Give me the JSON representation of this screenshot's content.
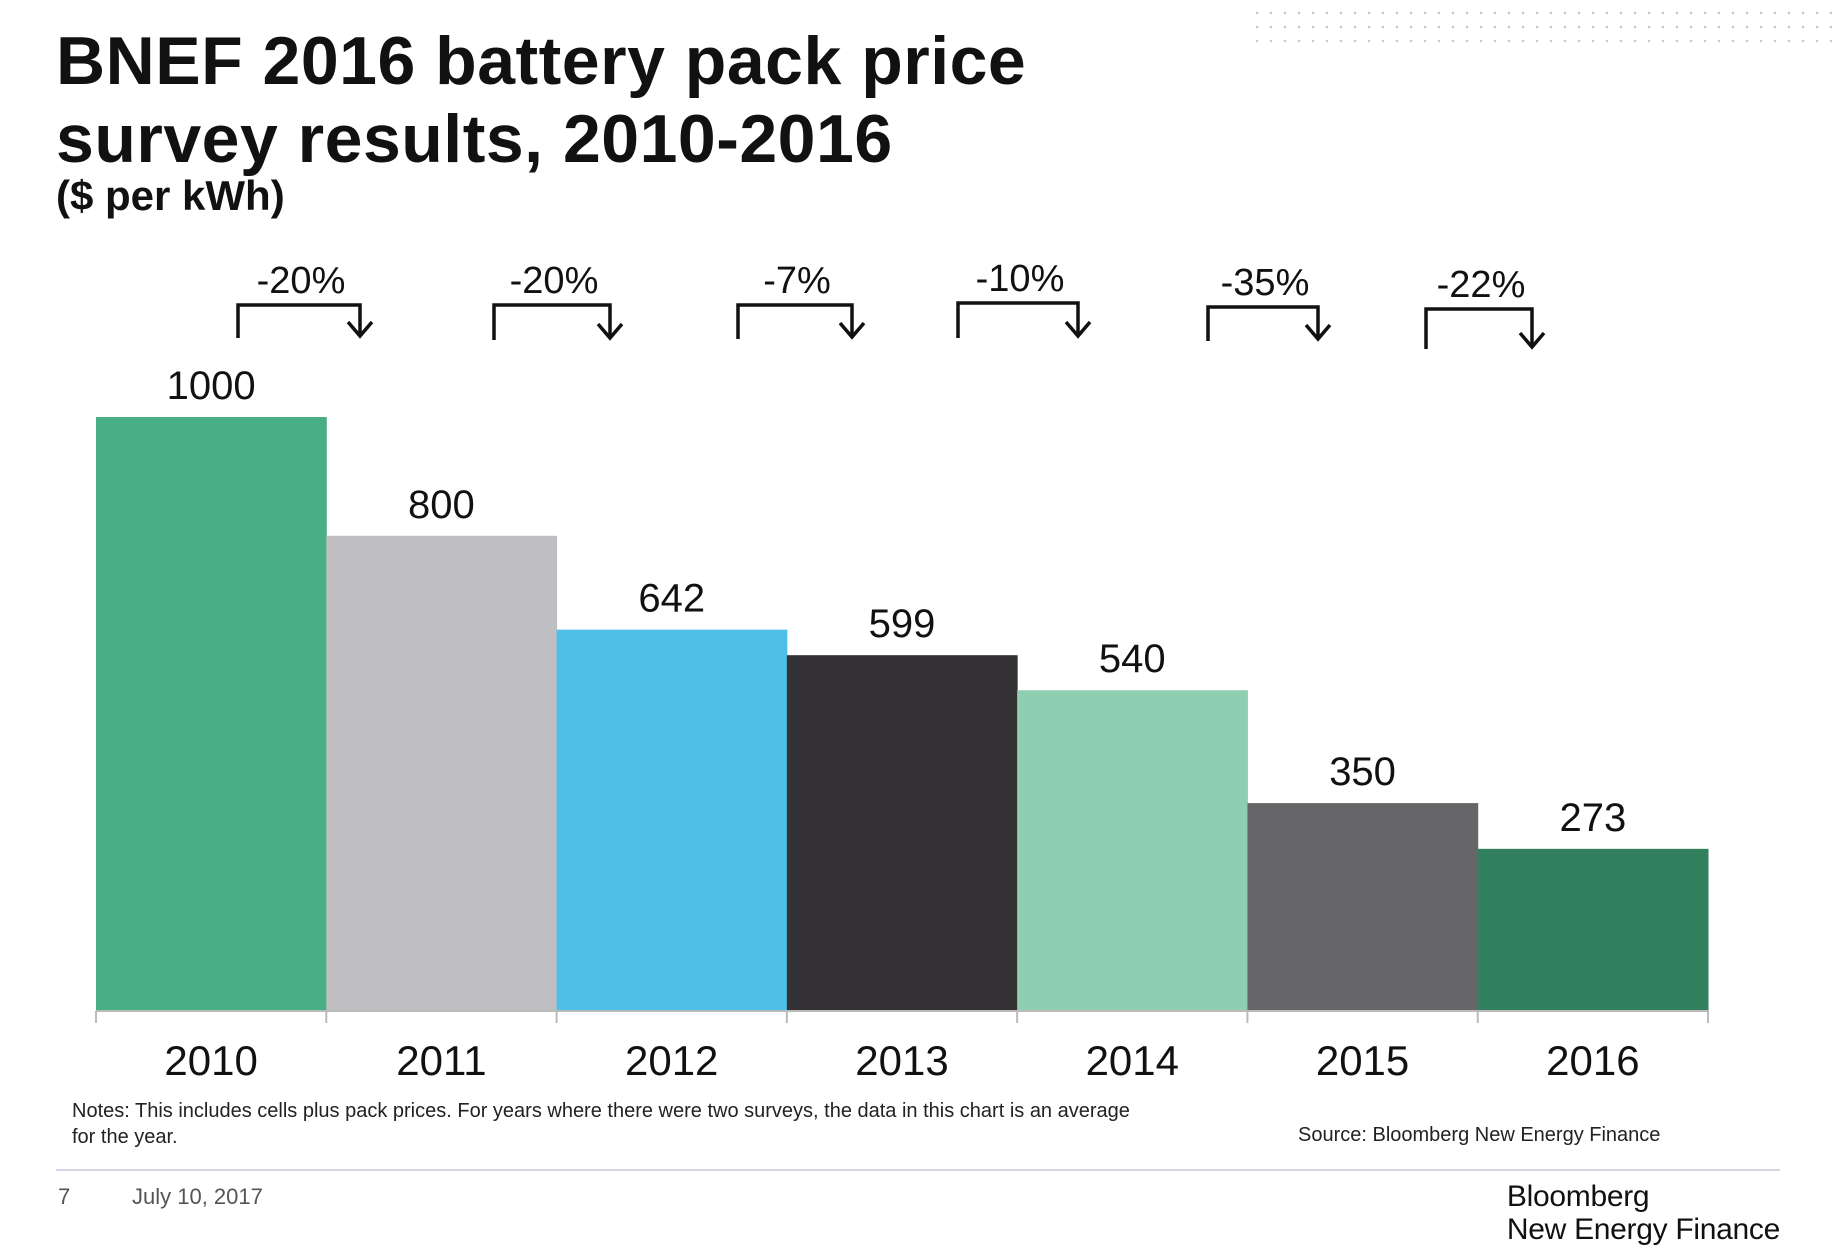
{
  "title": {
    "line1": "BNEF 2016 battery pack price",
    "line2": "survey results, 2010-2016",
    "subtitle": "($ per kWh)"
  },
  "chart_data": {
    "type": "bar",
    "title": "BNEF 2016 battery pack price survey results, 2010-2016",
    "ylabel": "$ per kWh",
    "xlabel": "",
    "ylim": [
      0,
      1000
    ],
    "grid": false,
    "legend": "none",
    "categories": [
      "2010",
      "2011",
      "2012",
      "2013",
      "2014",
      "2015",
      "2016"
    ],
    "values": [
      1000,
      800,
      642,
      599,
      540,
      350,
      273
    ],
    "colors": [
      "#4aae84",
      "#bfbfc2",
      "#4ebfe6",
      "#333133",
      "#8fceb0",
      "#666668",
      "#33805e"
    ],
    "changes": [
      {
        "label": "-20%",
        "between": [
          "2010",
          "2011"
        ]
      },
      {
        "label": "-20%",
        "between": [
          "2011",
          "2012"
        ]
      },
      {
        "label": "-7%",
        "between": [
          "2012",
          "2013"
        ]
      },
      {
        "label": "-10%",
        "between": [
          "2013",
          "2014"
        ]
      },
      {
        "label": "-35%",
        "between": [
          "2014",
          "2015"
        ]
      },
      {
        "label": "-22%",
        "between": [
          "2015",
          "2016"
        ]
      }
    ]
  },
  "notes": {
    "line1": "Notes: This includes cells plus pack prices. For years where there were two surveys, the data in this chart is an average",
    "line2": "for the year."
  },
  "source": "Source: Bloomberg New Energy Finance",
  "footer": {
    "page_number": "7",
    "date": "July 10, 2017",
    "logo_line1": "Bloomberg",
    "logo_line2": "New Energy Finance"
  }
}
